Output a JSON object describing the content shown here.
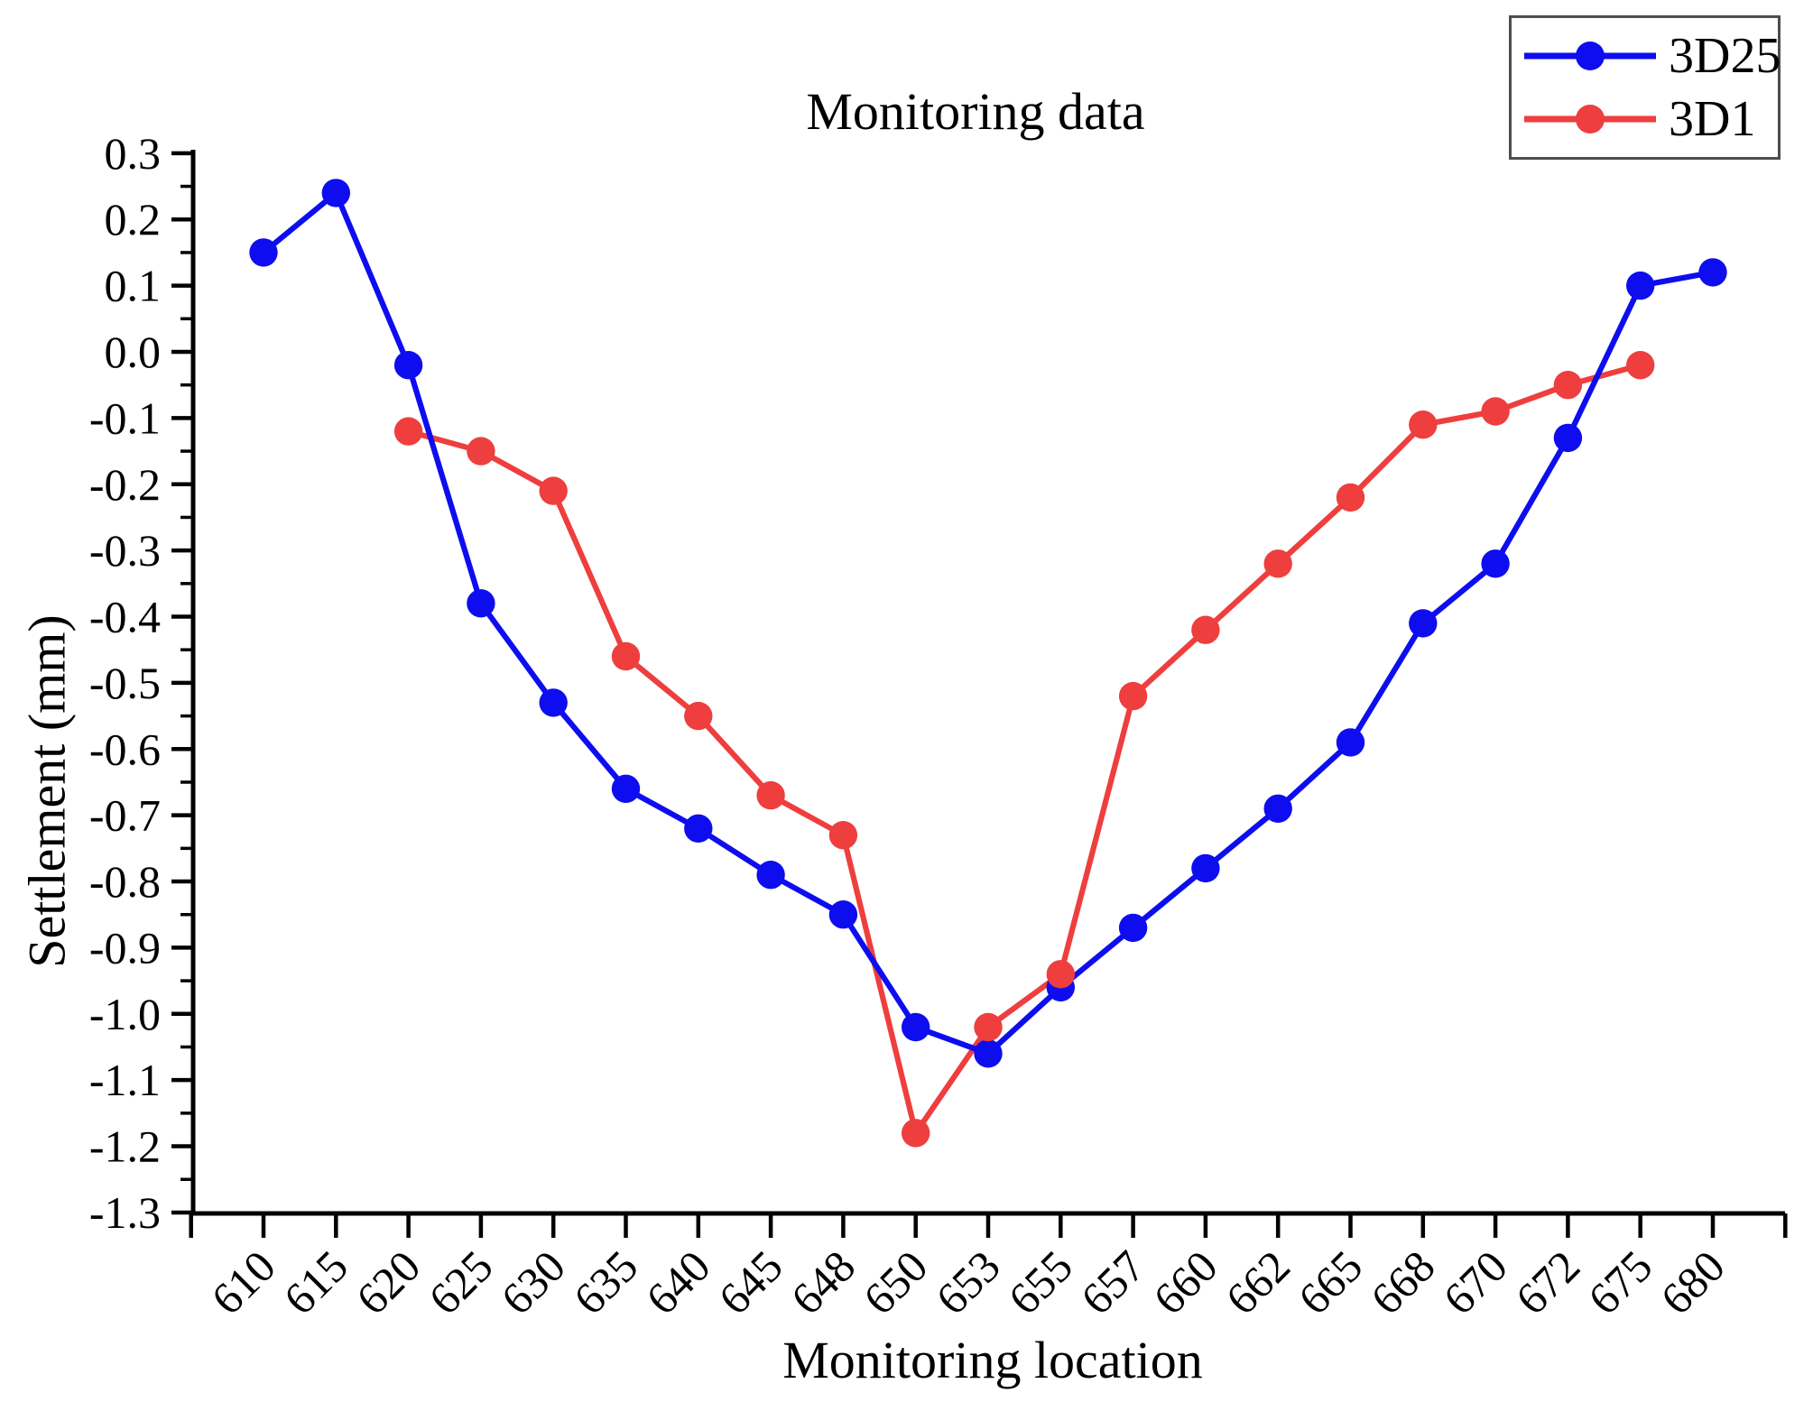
{
  "chart_data": {
    "type": "line",
    "title": "Monitoring data",
    "xlabel": "Monitoring location",
    "ylabel": "Settlement (mm)",
    "categories": [
      "610",
      "615",
      "620",
      "625",
      "630",
      "635",
      "640",
      "645",
      "648",
      "650",
      "653",
      "655",
      "657",
      "660",
      "662",
      "665",
      "668",
      "670",
      "672",
      "675",
      "680"
    ],
    "series": [
      {
        "name": "3D25",
        "color": "#0d0df0",
        "marker": "circle",
        "values": [
          0.15,
          0.24,
          -0.02,
          -0.38,
          -0.53,
          -0.66,
          -0.72,
          -0.79,
          -0.85,
          -1.02,
          -1.06,
          -0.96,
          -0.87,
          -0.78,
          -0.69,
          -0.59,
          -0.41,
          -0.32,
          -0.13,
          0.1,
          0.12
        ]
      },
      {
        "name": "3D1",
        "color": "#ee3e3e",
        "marker": "circle",
        "values": [
          null,
          null,
          -0.12,
          -0.15,
          -0.21,
          -0.46,
          -0.55,
          -0.67,
          -0.73,
          -1.18,
          -1.02,
          -0.94,
          -0.52,
          -0.42,
          -0.32,
          -0.22,
          -0.11,
          -0.09,
          -0.05,
          -0.02,
          null
        ]
      }
    ],
    "ylim": [
      -1.3,
      0.3
    ],
    "yticks": [
      "0.3",
      "0.2",
      "0.1",
      "0.0",
      "-0.1",
      "-0.2",
      "-0.3",
      "-0.4",
      "-0.5",
      "-0.6",
      "-0.7",
      "-0.8",
      "-0.9",
      "-1.0",
      "-1.1",
      "-1.2",
      "-1.3"
    ],
    "ytick_values": [
      0.3,
      0.2,
      0.1,
      0.0,
      -0.1,
      -0.2,
      -0.3,
      -0.4,
      -0.5,
      -0.6,
      -0.7,
      -0.8,
      -0.9,
      -1.0,
      -1.1,
      -1.2,
      -1.3
    ],
    "minor_ytick_interval": 0.05,
    "grid": false,
    "legend_position": "top-right",
    "axis_color": "#000000",
    "background": "#ffffff"
  }
}
